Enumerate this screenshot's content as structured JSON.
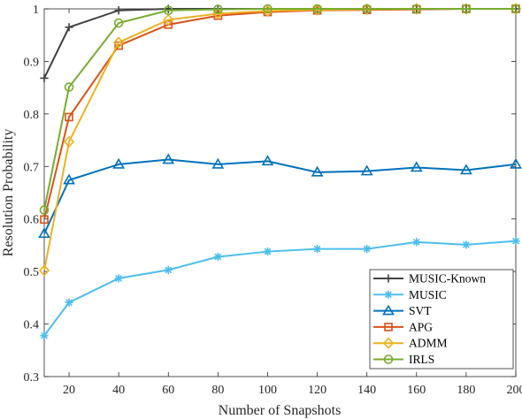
{
  "chart_data": {
    "type": "line",
    "xlabel": "Number of Snapshots",
    "ylabel": "Resolution Probability",
    "xlim": [
      10,
      200
    ],
    "ylim": [
      0.3,
      1.0
    ],
    "xticks": [
      20,
      40,
      60,
      80,
      100,
      120,
      140,
      160,
      180,
      200
    ],
    "yticks": [
      0.3,
      0.4,
      0.5,
      0.6,
      0.7,
      0.8,
      0.9,
      1.0
    ],
    "ytick_labels": [
      "0.3",
      "0.4",
      "0.5",
      "0.6",
      "0.7",
      "0.8",
      "0.9",
      "1"
    ],
    "grid": false,
    "legend_position": "bottom-right",
    "x": [
      10,
      20,
      40,
      60,
      80,
      100,
      120,
      140,
      160,
      180,
      200
    ],
    "series": [
      {
        "name": "MUSIC-Known",
        "color": "#404040",
        "marker": "plus",
        "values": [
          0.868,
          0.965,
          0.997,
          1.0,
          1.0,
          1.0,
          1.0,
          1.0,
          1.0,
          1.0,
          1.0
        ]
      },
      {
        "name": "MUSIC",
        "color": "#4DBEEE",
        "marker": "asterisk",
        "values": [
          0.378,
          0.441,
          0.487,
          0.503,
          0.528,
          0.538,
          0.543,
          0.543,
          0.556,
          0.551,
          0.558
        ]
      },
      {
        "name": "SVT",
        "color": "#0072BD",
        "marker": "triangle",
        "values": [
          0.572,
          0.674,
          0.704,
          0.713,
          0.704,
          0.71,
          0.689,
          0.691,
          0.698,
          0.693,
          0.704
        ]
      },
      {
        "name": "APG",
        "color": "#D95319",
        "marker": "square",
        "values": [
          0.599,
          0.794,
          0.93,
          0.97,
          0.987,
          0.994,
          0.997,
          0.998,
          0.999,
          1.0,
          1.0
        ]
      },
      {
        "name": "ADMM",
        "color": "#EDB120",
        "marker": "diamond",
        "values": [
          0.502,
          0.747,
          0.936,
          0.979,
          0.991,
          0.996,
          0.998,
          0.999,
          1.0,
          1.0,
          1.0
        ]
      },
      {
        "name": "IRLS",
        "color": "#77AC30",
        "marker": "circle",
        "values": [
          0.617,
          0.851,
          0.973,
          0.997,
          0.999,
          1.0,
          1.0,
          1.0,
          1.0,
          1.0,
          1.0
        ]
      }
    ]
  }
}
